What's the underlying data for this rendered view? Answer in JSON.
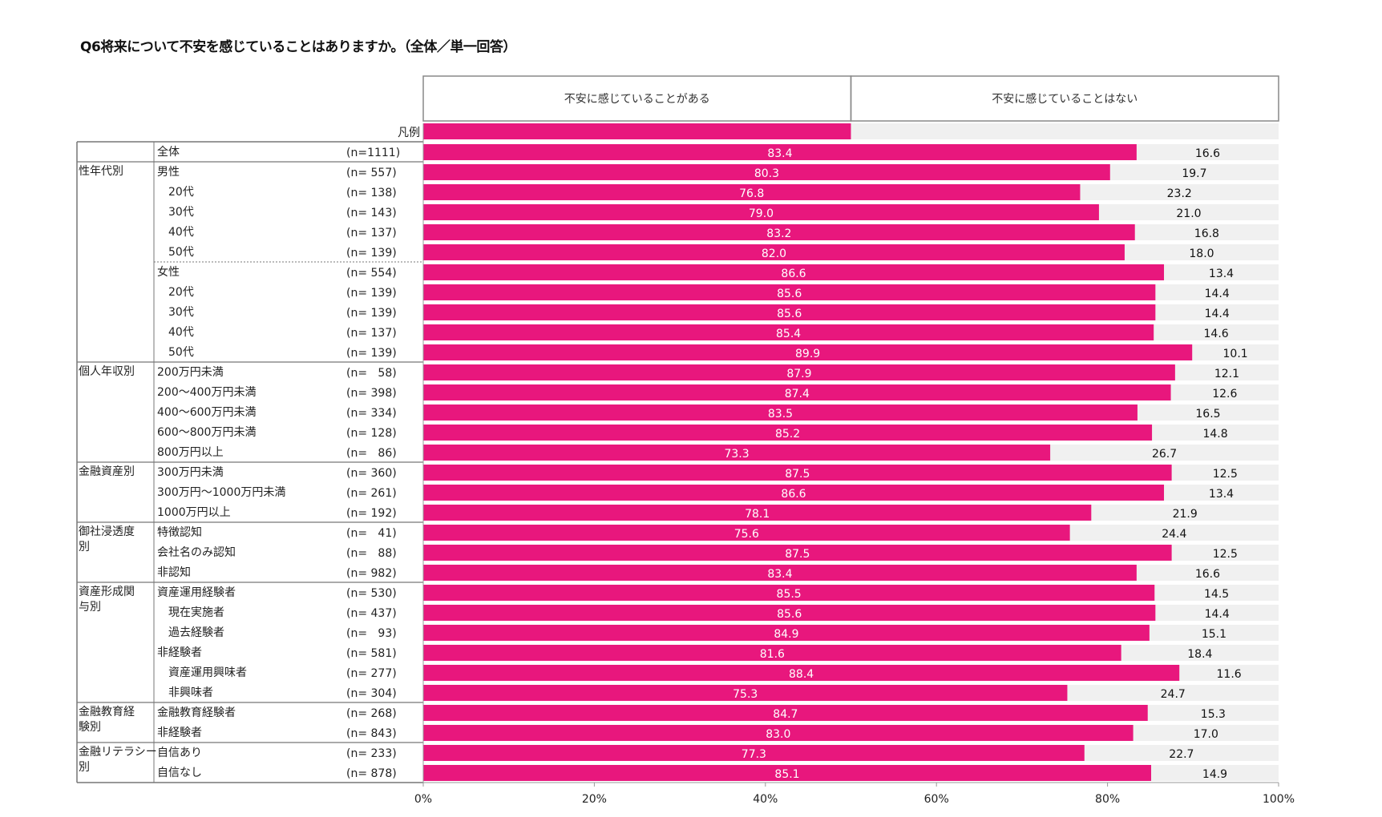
{
  "title": "Q6将来について不安を感じていることはありますか。（全体／単一回答）",
  "chart_data": {
    "type": "bar",
    "stacked": true,
    "orientation": "horizontal",
    "series": [
      {
        "name": "不安に感じていることがある",
        "color": "#E8177D"
      },
      {
        "name": "不安に感じていることはない",
        "color": "#F0F0F0"
      }
    ],
    "legend_label": "凡例",
    "x_ticks": [
      "0%",
      "20%",
      "40%",
      "60%",
      "80%",
      "100%"
    ],
    "xlim": [
      0,
      100
    ],
    "rows": [
      {
        "group": "",
        "label": "全体",
        "indent": 0,
        "n": "(n=1111)",
        "values": [
          83.4,
          16.6
        ]
      },
      {
        "group": "性年代別",
        "label": "男性",
        "indent": 0,
        "n": "(n= 557)",
        "values": [
          80.3,
          19.7
        ]
      },
      {
        "group": "",
        "label": "20代",
        "indent": 1,
        "n": "(n= 138)",
        "values": [
          76.8,
          23.2
        ]
      },
      {
        "group": "",
        "label": "30代",
        "indent": 1,
        "n": "(n= 143)",
        "values": [
          79.0,
          21.0
        ]
      },
      {
        "group": "",
        "label": "40代",
        "indent": 1,
        "n": "(n= 137)",
        "values": [
          83.2,
          16.8
        ]
      },
      {
        "group": "",
        "label": "50代",
        "indent": 1,
        "n": "(n= 139)",
        "values": [
          82.0,
          18.0
        ]
      },
      {
        "group": "",
        "label": "女性",
        "indent": 0,
        "n": "(n= 554)",
        "values": [
          86.6,
          13.4
        ]
      },
      {
        "group": "",
        "label": "20代",
        "indent": 1,
        "n": "(n= 139)",
        "values": [
          85.6,
          14.4
        ]
      },
      {
        "group": "",
        "label": "30代",
        "indent": 1,
        "n": "(n= 139)",
        "values": [
          85.6,
          14.4
        ]
      },
      {
        "group": "",
        "label": "40代",
        "indent": 1,
        "n": "(n= 137)",
        "values": [
          85.4,
          14.6
        ]
      },
      {
        "group": "",
        "label": "50代",
        "indent": 1,
        "n": "(n= 139)",
        "values": [
          89.9,
          10.1
        ]
      },
      {
        "group": "個人年収別",
        "label": "200万円未満",
        "indent": 0,
        "n": "(n=   58)",
        "values": [
          87.9,
          12.1
        ]
      },
      {
        "group": "",
        "label": "200～400万円未満",
        "indent": 0,
        "n": "(n= 398)",
        "values": [
          87.4,
          12.6
        ]
      },
      {
        "group": "",
        "label": "400～600万円未満",
        "indent": 0,
        "n": "(n= 334)",
        "values": [
          83.5,
          16.5
        ]
      },
      {
        "group": "",
        "label": "600～800万円未満",
        "indent": 0,
        "n": "(n= 128)",
        "values": [
          85.2,
          14.8
        ]
      },
      {
        "group": "",
        "label": "800万円以上",
        "indent": 0,
        "n": "(n=   86)",
        "values": [
          73.3,
          26.7
        ]
      },
      {
        "group": "金融資産別",
        "label": "300万円未満",
        "indent": 0,
        "n": "(n= 360)",
        "values": [
          87.5,
          12.5
        ]
      },
      {
        "group": "",
        "label": "300万円～1000万円未満",
        "indent": 0,
        "n": "(n= 261)",
        "values": [
          86.6,
          13.4
        ]
      },
      {
        "group": "",
        "label": "1000万円以上",
        "indent": 0,
        "n": "(n= 192)",
        "values": [
          78.1,
          21.9
        ]
      },
      {
        "group": "御社浸透度別",
        "label": "特徴認知",
        "indent": 0,
        "n": "(n=   41)",
        "values": [
          75.6,
          24.4
        ]
      },
      {
        "group": "",
        "label": "会社名のみ認知",
        "indent": 0,
        "n": "(n=   88)",
        "values": [
          87.5,
          12.5
        ]
      },
      {
        "group": "",
        "label": "非認知",
        "indent": 0,
        "n": "(n= 982)",
        "values": [
          83.4,
          16.6
        ]
      },
      {
        "group": "資産形成関与別",
        "label": "資産運用経験者",
        "indent": 0,
        "n": "(n= 530)",
        "values": [
          85.5,
          14.5
        ]
      },
      {
        "group": "",
        "label": "現在実施者",
        "indent": 1,
        "n": "(n= 437)",
        "values": [
          85.6,
          14.4
        ]
      },
      {
        "group": "",
        "label": "過去経験者",
        "indent": 1,
        "n": "(n=   93)",
        "values": [
          84.9,
          15.1
        ]
      },
      {
        "group": "",
        "label": "非経験者",
        "indent": 0,
        "n": "(n= 581)",
        "values": [
          81.6,
          18.4
        ]
      },
      {
        "group": "",
        "label": "資産運用興味者",
        "indent": 1,
        "n": "(n= 277)",
        "values": [
          88.4,
          11.6
        ]
      },
      {
        "group": "",
        "label": "非興味者",
        "indent": 1,
        "n": "(n= 304)",
        "values": [
          75.3,
          24.7
        ]
      },
      {
        "group": "金融教育経験別",
        "label": "金融教育経験者",
        "indent": 0,
        "n": "(n= 268)",
        "values": [
          84.7,
          15.3
        ]
      },
      {
        "group": "",
        "label": "非経験者",
        "indent": 0,
        "n": "(n= 843)",
        "values": [
          83.0,
          17.0
        ]
      },
      {
        "group": "金融リテラシー別",
        "label": "自信あり",
        "indent": 0,
        "n": "(n= 233)",
        "values": [
          77.3,
          22.7
        ]
      },
      {
        "group": "",
        "label": "自信なし",
        "indent": 0,
        "n": "(n= 878)",
        "values": [
          85.1,
          14.9
        ]
      }
    ],
    "group_labels": [
      {
        "text": "性年代別",
        "lines": [
          "性年代別"
        ]
      },
      {
        "text": "個人年収別",
        "lines": [
          "個人年収別"
        ]
      },
      {
        "text": "金融資産別",
        "lines": [
          "金融資産別"
        ]
      },
      {
        "text": "御社浸透度別",
        "lines": [
          "御社浸透度",
          "別"
        ]
      },
      {
        "text": "資産形成関与別",
        "lines": [
          "資産形成関",
          "与別"
        ]
      },
      {
        "text": "金融教育経験別",
        "lines": [
          "金融教育経",
          "験別"
        ]
      },
      {
        "text": "金融リテラシー別",
        "lines": [
          "金融リテラシー",
          "別"
        ]
      }
    ]
  }
}
